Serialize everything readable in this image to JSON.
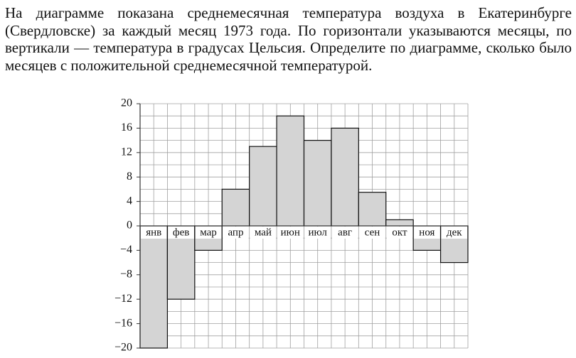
{
  "problem": {
    "text": "На диаграмме показана среднемесячная температура воздуха в Екатеринбурге (Свердловске) за каждый месяц 1973 года. По горизонтали указываются месяцы, по вертикали — температура в градусах Цельсия. Определите по диаграмме, сколько было месяцев с положительной среднемесячной температурой."
  },
  "chart_data": {
    "type": "bar",
    "categories": [
      "янв",
      "фев",
      "мар",
      "апр",
      "май",
      "июн",
      "июл",
      "авг",
      "сен",
      "окт",
      "ноя",
      "дек"
    ],
    "values": [
      -20,
      -12,
      -4,
      6,
      13,
      18,
      14,
      16,
      5.5,
      1,
      -4,
      -6
    ],
    "color": "#d4d4d4",
    "ylim": [
      -20,
      20
    ],
    "yticks": [
      {
        "value": -20,
        "label": "−20"
      },
      {
        "value": -16,
        "label": "−16"
      },
      {
        "value": -12,
        "label": "−12"
      },
      {
        "value": -8,
        "label": "−8"
      },
      {
        "value": -4,
        "label": "−4"
      },
      0,
      4,
      8,
      12,
      16,
      20
    ],
    "minor_yticks": [
      -18,
      -14,
      -10,
      -6,
      -2,
      2,
      6,
      10,
      14,
      18
    ],
    "grid": true
  }
}
